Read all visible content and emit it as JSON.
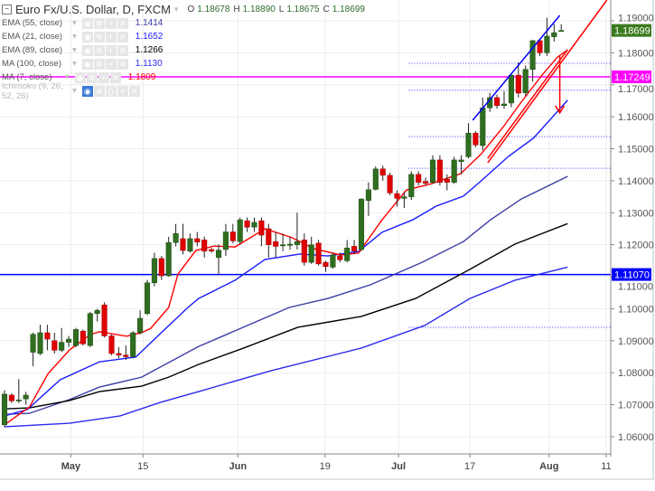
{
  "header": {
    "title": "Euro Fx/U.S. Dollar, D, FXCM",
    "collapse_icon": "minus-square-icon",
    "ohlc": [
      {
        "k": "O",
        "v": "1.18678"
      },
      {
        "k": "H",
        "v": "1.18890"
      },
      {
        "k": "L",
        "v": "1.18675"
      },
      {
        "k": "C",
        "v": "1.18699"
      }
    ]
  },
  "indicators": [
    {
      "name": "EMA (55, close)",
      "value": "1.1414",
      "color": "#3c3ca8"
    },
    {
      "name": "EMA (21, close)",
      "value": "1.1652",
      "color": "#1a1aff"
    },
    {
      "name": "EMA (89, close)",
      "value": "1.1266",
      "color": "#000000"
    },
    {
      "name": "MA (100, close)",
      "value": "1.1130",
      "color": "#2a2aee"
    },
    {
      "name": "MA (7, close)",
      "value": "1.1809",
      "color": "#ff0000"
    },
    {
      "name": "Ichimoku (9, 26, 52, 26)",
      "value": "",
      "color": "#bbbbbb"
    }
  ],
  "chart_data": {
    "type": "candlestick",
    "ylim": [
      1.055,
      1.195
    ],
    "grid": true,
    "y_ticks": [
      "1.19000",
      "1.18000",
      "1.17000",
      "1.16000",
      "1.15000",
      "1.14000",
      "1.13000",
      "1.12000",
      "1.11000",
      "1.10000",
      "1.09000",
      "1.08000",
      "1.07000",
      "1.06000"
    ],
    "x_ticks": [
      "May",
      "15",
      "Jun",
      "19",
      "Jul",
      "17",
      "Aug",
      "11"
    ],
    "colors": {
      "up": "#2f6e1f",
      "down": "#e00000",
      "wick": "#222222"
    },
    "candles_ohlc": [
      [
        1.0637,
        1.0745,
        1.063,
        1.0733
      ],
      [
        1.073,
        1.0735,
        1.0705,
        1.0712
      ],
      [
        1.0712,
        1.078,
        1.0705,
        1.0715
      ],
      [
        1.0718,
        1.074,
        1.07,
        1.073
      ],
      [
        1.0864,
        1.0925,
        1.082,
        1.092
      ],
      [
        1.086,
        1.095,
        1.0855,
        1.0925
      ],
      [
        1.0925,
        1.095,
        1.087,
        1.0905
      ],
      [
        1.09,
        1.0925,
        1.086,
        1.087
      ],
      [
        1.087,
        1.094,
        1.0865,
        1.0895
      ],
      [
        1.0895,
        1.0915,
        1.088,
        1.0905
      ],
      [
        1.0885,
        1.094,
        1.088,
        1.0935
      ],
      [
        1.093,
        1.0935,
        1.0885,
        1.089
      ],
      [
        1.0885,
        1.099,
        1.088,
        1.0985
      ],
      [
        1.0985,
        1.1,
        1.096,
        1.0995
      ],
      [
        1.1012,
        1.102,
        1.091,
        1.0915
      ],
      [
        1.0915,
        1.092,
        1.0855,
        1.086
      ],
      [
        1.086,
        1.088,
        1.0845,
        1.0855
      ],
      [
        1.0855,
        1.0885,
        1.084,
        1.085
      ],
      [
        1.085,
        1.093,
        1.0845,
        1.0925
      ],
      [
        1.0925,
        1.0995,
        1.092,
        1.097
      ],
      [
        1.0985,
        1.109,
        1.098,
        1.1081
      ],
      [
        1.1081,
        1.1175,
        1.107,
        1.1157
      ],
      [
        1.1157,
        1.1165,
        1.109,
        1.1103
      ],
      [
        1.1103,
        1.1225,
        1.11,
        1.1207
      ],
      [
        1.1207,
        1.1265,
        1.1195,
        1.1235
      ],
      [
        1.1219,
        1.1265,
        1.117,
        1.1182
      ],
      [
        1.118,
        1.1235,
        1.1175,
        1.1219
      ],
      [
        1.1219,
        1.124,
        1.1195,
        1.1208
      ],
      [
        1.1215,
        1.1225,
        1.116,
        1.118
      ],
      [
        1.1185,
        1.119,
        1.1175,
        1.118
      ],
      [
        1.116,
        1.12,
        1.1105,
        1.1183
      ],
      [
        1.1185,
        1.1265,
        1.1165,
        1.124
      ],
      [
        1.124,
        1.1265,
        1.1205,
        1.1212
      ],
      [
        1.121,
        1.1285,
        1.12,
        1.1278
      ],
      [
        1.1275,
        1.1285,
        1.124,
        1.1255
      ],
      [
        1.1255,
        1.1285,
        1.124,
        1.127
      ],
      [
        1.1275,
        1.1285,
        1.1195,
        1.123
      ],
      [
        1.125,
        1.1265,
        1.116,
        1.12
      ],
      [
        1.121,
        1.124,
        1.116,
        1.1195
      ],
      [
        1.1198,
        1.1235,
        1.118,
        1.12
      ],
      [
        1.1198,
        1.1225,
        1.1185,
        1.1202
      ],
      [
        1.12,
        1.13,
        1.1185,
        1.121
      ],
      [
        1.1215,
        1.1235,
        1.1135,
        1.1145
      ],
      [
        1.1145,
        1.1225,
        1.114,
        1.12
      ],
      [
        1.1205,
        1.1215,
        1.1135,
        1.114
      ],
      [
        1.1145,
        1.115,
        1.1115,
        1.1132
      ],
      [
        1.113,
        1.1175,
        1.1125,
        1.1168
      ],
      [
        1.1165,
        1.1175,
        1.1145,
        1.1153
      ],
      [
        1.115,
        1.1215,
        1.1145,
        1.119
      ],
      [
        1.1195,
        1.1215,
        1.1172,
        1.118
      ],
      [
        1.1185,
        1.1345,
        1.118,
        1.1343
      ],
      [
        1.1338,
        1.1395,
        1.129,
        1.1372
      ],
      [
        1.1373,
        1.1445,
        1.137,
        1.1437
      ],
      [
        1.1437,
        1.1447,
        1.14,
        1.1417
      ],
      [
        1.1417,
        1.1425,
        1.1355,
        1.1362
      ],
      [
        1.136,
        1.137,
        1.132,
        1.1345
      ],
      [
        1.1345,
        1.1365,
        1.1315,
        1.135
      ],
      [
        1.135,
        1.143,
        1.134,
        1.142
      ],
      [
        1.142,
        1.143,
        1.1385,
        1.1395
      ],
      [
        1.1398,
        1.141,
        1.1385,
        1.1392
      ],
      [
        1.1395,
        1.148,
        1.139,
        1.1465
      ],
      [
        1.1465,
        1.148,
        1.1385,
        1.1395
      ],
      [
        1.1405,
        1.142,
        1.137,
        1.1395
      ],
      [
        1.1395,
        1.1475,
        1.139,
        1.1465
      ],
      [
        1.146,
        1.148,
        1.142,
        1.1465
      ],
      [
        1.1475,
        1.158,
        1.147,
        1.1549
      ],
      [
        1.1549,
        1.1555,
        1.1505,
        1.1512
      ],
      [
        1.151,
        1.166,
        1.1495,
        1.1628
      ],
      [
        1.1628,
        1.1675,
        1.1615,
        1.166
      ],
      [
        1.166,
        1.167,
        1.1625,
        1.1635
      ],
      [
        1.1635,
        1.168,
        1.1625,
        1.164
      ],
      [
        1.1643,
        1.1735,
        1.163,
        1.173
      ],
      [
        1.173,
        1.177,
        1.166,
        1.1674
      ],
      [
        1.1675,
        1.176,
        1.1665,
        1.1748
      ],
      [
        1.1748,
        1.184,
        1.171,
        1.1838
      ],
      [
        1.1838,
        1.1845,
        1.179,
        1.18
      ],
      [
        1.18,
        1.191,
        1.179,
        1.1852
      ],
      [
        1.185,
        1.189,
        1.1835,
        1.1863
      ],
      [
        1.18678,
        1.1889,
        1.18675,
        1.18699
      ]
    ],
    "lines": [
      {
        "name": "EMA (55, close)",
        "color": "#3c3ca8",
        "points": [
          [
            0,
            1.067
          ],
          [
            3.5,
            1.0673
          ],
          [
            9.1,
            1.0716
          ],
          [
            13.3,
            1.0755
          ],
          [
            19.2,
            1.0786
          ],
          [
            27.2,
            1.0882
          ],
          [
            39.9,
            1.1004
          ],
          [
            45.3,
            1.1032
          ],
          [
            51.3,
            1.1075
          ],
          [
            58.5,
            1.1145
          ],
          [
            64.3,
            1.121
          ],
          [
            68.1,
            1.1278
          ],
          [
            72.4,
            1.1343
          ],
          [
            78.9,
            1.1414
          ]
        ]
      },
      {
        "name": "EMA (89, close)",
        "color": "#000000",
        "points": [
          [
            0,
            1.0687
          ],
          [
            3.5,
            1.069
          ],
          [
            9.1,
            1.0713
          ],
          [
            13.3,
            1.0741
          ],
          [
            19.2,
            1.0758
          ],
          [
            23,
            1.0786
          ],
          [
            27.2,
            1.0826
          ],
          [
            33.5,
            1.0877
          ],
          [
            41.1,
            1.0942
          ],
          [
            50,
            1.0976
          ],
          [
            57.6,
            1.1032
          ],
          [
            65.2,
            1.1123
          ],
          [
            71.5,
            1.1202
          ],
          [
            78.9,
            1.1266
          ]
        ]
      },
      {
        "name": "MA (100, close)",
        "color": "#2a2aee",
        "points": [
          [
            0,
            1.0631
          ],
          [
            9.1,
            1.0642
          ],
          [
            16.2,
            1.0665
          ],
          [
            21.8,
            1.0707
          ],
          [
            27.2,
            1.0741
          ],
          [
            37.3,
            1.0806
          ],
          [
            50,
            1.0877
          ],
          [
            58.9,
            1.0948
          ],
          [
            65.2,
            1.1032
          ],
          [
            71.5,
            1.1089
          ],
          [
            78.9,
            1.113
          ]
        ]
      },
      {
        "name": "EMA (21, close)",
        "color": "#1a1aff",
        "points": [
          [
            0,
            1.0665
          ],
          [
            3.2,
            1.0685
          ],
          [
            7.8,
            1.0778
          ],
          [
            13.3,
            1.0834
          ],
          [
            18.4,
            1.0849
          ],
          [
            21.3,
            1.0911
          ],
          [
            25.7,
            1.1004
          ],
          [
            27.2,
            1.1032
          ],
          [
            32.3,
            1.1089
          ],
          [
            36.5,
            1.1154
          ],
          [
            41.4,
            1.1171
          ],
          [
            45.3,
            1.1165
          ],
          [
            49.6,
            1.1179
          ],
          [
            52.9,
            1.1239
          ],
          [
            57.2,
            1.1278
          ],
          [
            60.5,
            1.1321
          ],
          [
            64.3,
            1.1352
          ],
          [
            66.8,
            1.14
          ],
          [
            70.6,
            1.1476
          ],
          [
            74.1,
            1.1533
          ],
          [
            78.9,
            1.1652
          ]
        ]
      },
      {
        "name": "MA (7, close)",
        "color": "#ff0000",
        "points": [
          [
            0,
            1.0637
          ],
          [
            3.5,
            1.0693
          ],
          [
            6.1,
            1.0797
          ],
          [
            9.1,
            1.0871
          ],
          [
            12,
            1.0919
          ],
          [
            13.3,
            1.0928
          ],
          [
            17.1,
            1.0914
          ],
          [
            19.2,
            1.0925
          ],
          [
            20.5,
            1.0939
          ],
          [
            23,
            1.1004
          ],
          [
            24.3,
            1.1108
          ],
          [
            26.8,
            1.1182
          ],
          [
            29.4,
            1.1196
          ],
          [
            32.3,
            1.1193
          ],
          [
            36.5,
            1.125
          ],
          [
            40.3,
            1.1222
          ],
          [
            43.3,
            1.1188
          ],
          [
            47.1,
            1.1168
          ],
          [
            49.6,
            1.1174
          ],
          [
            52.9,
            1.1278
          ],
          [
            56.3,
            1.1371
          ],
          [
            59.7,
            1.139
          ],
          [
            63.9,
            1.1422
          ],
          [
            66.8,
            1.1484
          ],
          [
            69.9,
            1.1569
          ],
          [
            72.4,
            1.1646
          ],
          [
            75.3,
            1.173
          ],
          [
            77.5,
            1.1787
          ],
          [
            78.9,
            1.1809
          ]
        ]
      }
    ],
    "horizontal_lines": [
      {
        "price": 1.17249,
        "label": "1.17249",
        "color": "#ff00ff"
      },
      {
        "price": 1.1107,
        "label": "1.11070",
        "color": "#0000ff"
      }
    ],
    "dotted_levels": [
      1.1767,
      1.1683,
      1.1538,
      1.1439,
      1.0942
    ],
    "drawings": [
      {
        "kind": "trendline",
        "color": "#0000ff",
        "from": [
          65.6,
          1.1589
        ],
        "to": [
          77.8,
          1.1917
        ]
      },
      {
        "kind": "trendline",
        "color": "#ff0000",
        "from": [
          67.7,
          1.1456
        ],
        "to": [
          84.4,
          1.1965
        ]
      },
      {
        "kind": "trendline",
        "color": "#ff0000",
        "from": [
          67.7,
          1.147
        ],
        "to": [
          78.9,
          1.181
        ]
      },
      {
        "kind": "arrow",
        "color": "#ff0000",
        "from": [
          77.8,
          1.179
        ],
        "to": [
          77.8,
          1.1612
        ]
      }
    ],
    "last_price": {
      "label": "1.18699",
      "price": 1.18699,
      "color": "#3a7a1e"
    }
  }
}
